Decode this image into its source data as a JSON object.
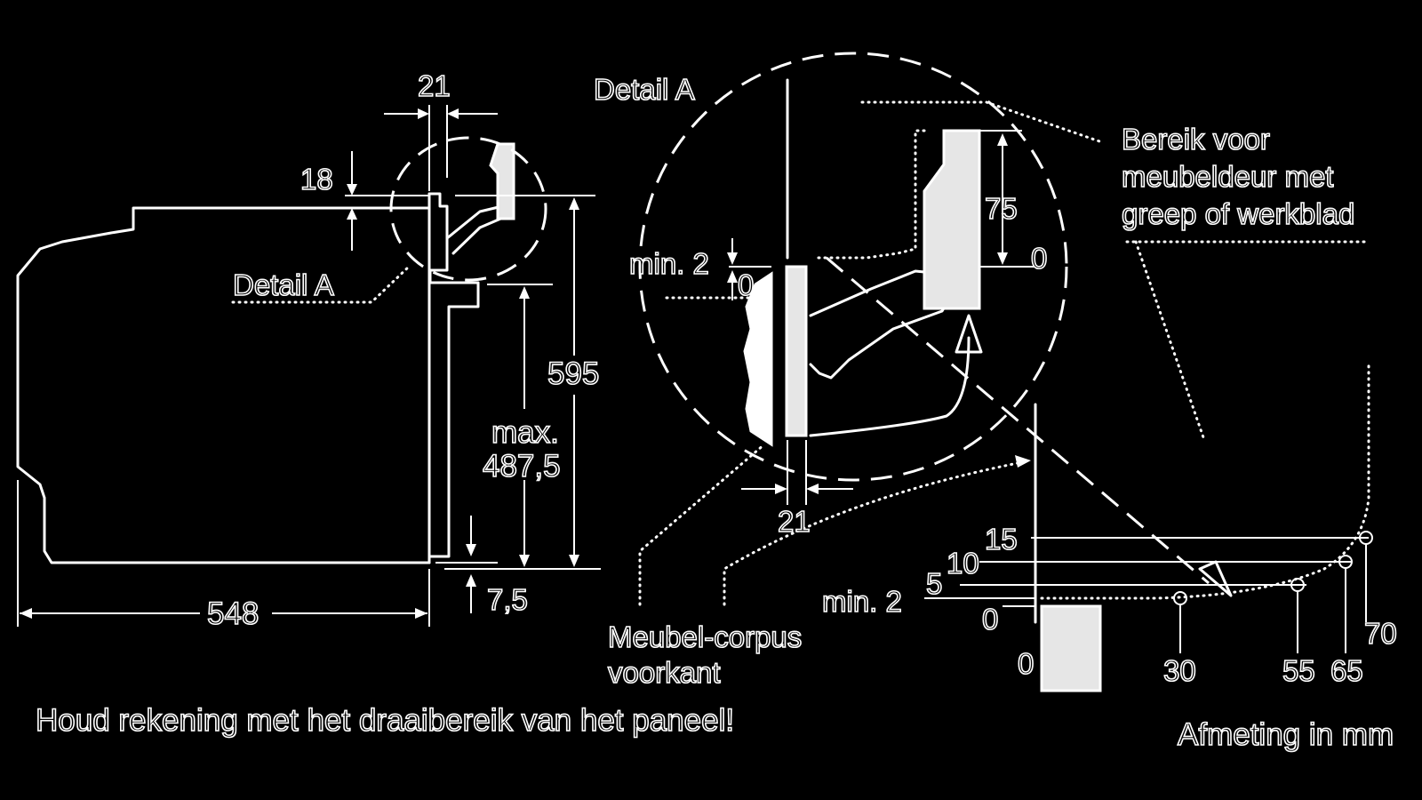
{
  "labels": {
    "detail_a_top": "Detail A",
    "detail_a_left": "Detail A",
    "bereik_line1": "Bereik voor",
    "bereik_line2": "meubeldeur met",
    "bereik_line3": "greep of werkblad",
    "meubel_line1": "Meubel-corpus",
    "meubel_line2": "voorkant",
    "note": "Houd rekening met het draaibereik van het paneel!",
    "units": "Afmeting in mm"
  },
  "dimensions": {
    "d21_top": "21",
    "d18": "18",
    "d595": "595",
    "dmax_line1": "max.",
    "dmax_line2": "487,5",
    "d7_5": "7,5",
    "d548": "548",
    "d_min2_detail": "min. 2",
    "d0_detail": "0",
    "d75": "75",
    "d0_right": "0",
    "d21_bottom": "21"
  },
  "scale": {
    "y_labels": [
      "15",
      "10",
      "5",
      "min. 2",
      "0"
    ],
    "x_labels": [
      "0",
      "30",
      "55",
      "65",
      "70"
    ]
  },
  "colors": {
    "background": "#000000",
    "line": "#ffffff",
    "panel_fill": "#e6e6e6"
  }
}
